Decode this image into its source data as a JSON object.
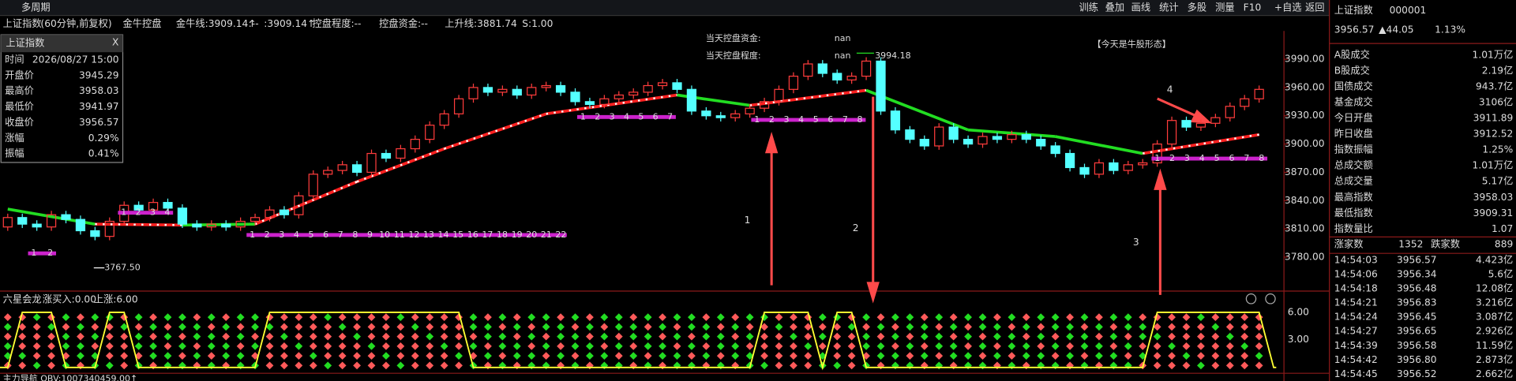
{
  "toolbar": {
    "left": "多周期",
    "buttons": [
      "训练",
      "叠加",
      "画线",
      "统计",
      "多股",
      "测量",
      "F10",
      "+自选",
      "返回"
    ]
  },
  "info_line": {
    "title": "上证指数",
    "period": "(60分钟,前复权)",
    "indicator": "金牛控盘",
    "items": [
      "金牛线:3909.14↑",
      ":--",
      ":3909.14↑",
      "控盘程度:--",
      "控盘资金:--",
      "上升线:3881.74",
      "S:1.00"
    ]
  },
  "info_box": {
    "title": "上证指数",
    "close_icon": "X",
    "rows": [
      [
        "时间",
        "2026/08/27 15:00"
      ],
      [
        "开盘价",
        "3945.29"
      ],
      [
        "最高价",
        "3958.03"
      ],
      [
        "最低价",
        "3941.97"
      ],
      [
        "收盘价",
        "3956.57"
      ],
      [
        "涨幅",
        "0.29%"
      ],
      [
        "振幅",
        "0.41%"
      ]
    ]
  },
  "chart_data": {
    "type": "candlestick",
    "open": [
      3812,
      3822,
      3815,
      3812,
      3825,
      3820,
      3808,
      3802,
      3818,
      3835,
      3830,
      3838,
      3832,
      3815,
      3812,
      3815,
      3812,
      3818,
      3822,
      3830,
      3825,
      3845,
      3868,
      3872,
      3878,
      3870,
      3890,
      3885,
      3895,
      3905,
      3920,
      3932,
      3948,
      3960,
      3955,
      3958,
      3952,
      3960,
      3962,
      3955,
      3945,
      3942,
      3948,
      3952,
      3955,
      3962,
      3965,
      3958,
      3935,
      3930,
      3928,
      3932,
      3938,
      3945,
      3958,
      3972,
      3985,
      3975,
      3968,
      3972,
      3988,
      3935,
      3915,
      3905,
      3898,
      3918,
      3905,
      3900,
      3908,
      3905,
      3910,
      3905,
      3898,
      3890,
      3875,
      3868,
      3880,
      3872,
      3878,
      3880,
      3900,
      3925,
      3918,
      3922,
      3928,
      3940,
      3948
    ],
    "close": [
      3822,
      3815,
      3812,
      3825,
      3820,
      3808,
      3802,
      3818,
      3835,
      3830,
      3838,
      3832,
      3815,
      3812,
      3815,
      3812,
      3818,
      3822,
      3830,
      3825,
      3845,
      3868,
      3872,
      3878,
      3870,
      3890,
      3885,
      3895,
      3905,
      3920,
      3932,
      3948,
      3960,
      3955,
      3958,
      3952,
      3960,
      3962,
      3955,
      3945,
      3942,
      3948,
      3952,
      3955,
      3962,
      3965,
      3958,
      3935,
      3930,
      3928,
      3932,
      3938,
      3945,
      3958,
      3972,
      3985,
      3975,
      3968,
      3972,
      3988,
      3935,
      3915,
      3905,
      3898,
      3918,
      3905,
      3900,
      3908,
      3905,
      3910,
      3905,
      3898,
      3890,
      3875,
      3868,
      3880,
      3872,
      3878,
      3880,
      3900,
      3925,
      3918,
      3922,
      3928,
      3940,
      3948,
      3958
    ],
    "up_color": "#ff3c3c",
    "down_color": "#54ffff",
    "trend": {
      "x": [
        0,
        6,
        12,
        17,
        24,
        30,
        37,
        46,
        51,
        59,
        66,
        72,
        78,
        86
      ],
      "values": [
        3831,
        3815,
        3814,
        3815,
        3860,
        3895,
        3932,
        3952,
        3941,
        3957,
        3915,
        3908,
        3890,
        3910
      ],
      "segment_colors": [
        "#22dd22",
        "#ff2020",
        "#22dd22",
        "#ff2020",
        "#ff2020",
        "#ff2020",
        "#ff2020",
        "#22dd22",
        "#ff2020",
        "#22dd22",
        "#22dd22",
        "#22dd22",
        "#ff2020"
      ]
    },
    "ylim": [
      3745,
      4020
    ],
    "yticks": [
      {
        "value": 3990,
        "label": "3990.00"
      },
      {
        "value": 3960,
        "label": "3960.00"
      },
      {
        "value": 3930,
        "label": "3930.00"
      },
      {
        "value": 3900,
        "label": "3900.00"
      },
      {
        "value": 3870,
        "label": "3870.00"
      },
      {
        "value": 3840,
        "label": "3840.00"
      },
      {
        "value": 3810,
        "label": "3810.00"
      },
      {
        "value": 3780,
        "label": "3780.00"
      }
    ]
  },
  "annotations": {
    "fund_label": "当天控盘资金:",
    "fund_value": "nan",
    "degree_label": "当天控盘程度:",
    "degree_value": "nan",
    "high_mark": "3994.18",
    "low_mark": "3767.50",
    "pattern": "【今天是牛股形态】",
    "arrows": [
      "1",
      "2",
      "3",
      "4"
    ]
  },
  "counts": [
    [
      "1",
      "2"
    ],
    [
      "1",
      "2",
      "3",
      "4"
    ],
    [
      "1",
      "2",
      "3",
      "4",
      "5",
      "6",
      "7",
      "8",
      "9",
      "10",
      "11",
      "12",
      "13",
      "14",
      "15",
      "16",
      "17",
      "18",
      "19",
      "20",
      "21",
      "22"
    ],
    [
      "1",
      "2",
      "3",
      "4",
      "5",
      "6",
      "7"
    ],
    [
      "1",
      "2",
      "3",
      "4",
      "5",
      "6",
      "7",
      "8"
    ],
    [
      "1",
      "2",
      "3",
      "4",
      "5",
      "6",
      "7",
      "8"
    ]
  ],
  "lower_panel": {
    "name": "六星会龙",
    "items": [
      "涨买入:0.00",
      "上涨:6.00"
    ],
    "ticks": [
      "6.00",
      "3.00"
    ],
    "footer": "主力导航 OBV:1007340459.00↑"
  },
  "right_panel": {
    "name": "上证指数",
    "code": "000001",
    "price": "3956.57",
    "change": "▲44.05",
    "pct": "1.13%",
    "rows": [
      [
        "A股成交",
        "1.01万亿"
      ],
      [
        "B股成交",
        "2.19亿"
      ],
      [
        "国债成交",
        "943.7亿"
      ],
      [
        "基金成交",
        "3106亿"
      ],
      [
        "今日开盘",
        "3911.89"
      ],
      [
        "昨日收盘",
        "3912.52"
      ],
      [
        "指数振幅",
        "1.25%"
      ],
      [
        "总成交额",
        "1.01万亿"
      ],
      [
        "总成交量",
        "5.17亿"
      ],
      [
        "最高指数",
        "3958.03"
      ],
      [
        "最低指数",
        "3909.31"
      ],
      [
        "指数量比",
        "1.07"
      ]
    ],
    "breadth": [
      "涨家数",
      "1352",
      "跌家数",
      "889"
    ],
    "ticks": [
      [
        "14:54:03",
        "3956.57",
        "4.423亿"
      ],
      [
        "14:54:06",
        "3956.34",
        "5.6亿"
      ],
      [
        "14:54:18",
        "3956.48",
        "12.08亿"
      ],
      [
        "14:54:21",
        "3956.83",
        "3.216亿"
      ],
      [
        "14:54:24",
        "3956.45",
        "3.087亿"
      ],
      [
        "14:54:27",
        "3956.65",
        "2.926亿"
      ],
      [
        "14:54:39",
        "3956.58",
        "11.59亿"
      ],
      [
        "14:54:42",
        "3956.80",
        "2.873亿"
      ],
      [
        "14:54:45",
        "3956.52",
        "2.662亿"
      ]
    ]
  }
}
